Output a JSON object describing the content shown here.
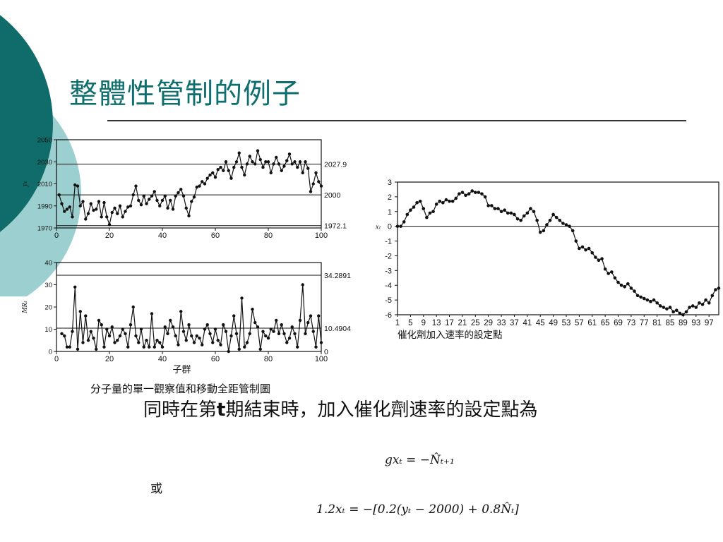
{
  "slide": {
    "title": "整體性管制的例子",
    "theme": {
      "accent_dark": "#0f6e6e",
      "accent_light": "#9ccfcf",
      "text": "#111111"
    }
  },
  "body": {
    "text_before": "同時在第",
    "t": "t",
    "text_after": "期結束時，加入催化劑速率的設定點為",
    "or": "或",
    "eq1": "gxₜ = −N̂ₜ₊₁",
    "eq2": "1.2xₜ = −[0.2(yₜ − 2000) + 0.8N̂ₜ]"
  },
  "chart_data": [
    {
      "type": "line",
      "ylabel": "yₜ",
      "x": [
        1,
        2,
        3,
        4,
        5,
        6,
        7,
        8,
        9,
        10,
        11,
        12,
        13,
        14,
        15,
        16,
        17,
        18,
        19,
        20,
        21,
        22,
        23,
        24,
        25,
        26,
        27,
        28,
        29,
        30,
        31,
        32,
        33,
        34,
        35,
        36,
        37,
        38,
        39,
        40,
        41,
        42,
        43,
        44,
        45,
        46,
        47,
        48,
        49,
        50,
        51,
        52,
        53,
        54,
        55,
        56,
        57,
        58,
        59,
        60,
        61,
        62,
        63,
        64,
        65,
        66,
        67,
        68,
        69,
        70,
        71,
        72,
        73,
        74,
        75,
        76,
        77,
        78,
        79,
        80,
        81,
        82,
        83,
        84,
        85,
        86,
        87,
        88,
        89,
        90,
        91,
        92,
        93,
        94,
        95,
        96,
        97,
        98,
        99,
        100
      ],
      "values": [
        2000,
        1992,
        1985,
        1987,
        1989,
        1980,
        2009,
        2008,
        1990,
        1994,
        1978,
        1983,
        1992,
        1986,
        1987,
        1994,
        1980,
        1993,
        1980,
        1973,
        1984,
        1988,
        1983,
        1990,
        1980,
        1985,
        1989,
        1990,
        2000,
        2008,
        1995,
        1991,
        1999,
        1992,
        1996,
        1999,
        2003,
        1995,
        1990,
        1995,
        1999,
        1988,
        1995,
        1987,
        1999,
        2002,
        2005,
        1999,
        1988,
        1981,
        1994,
        1998,
        2007,
        2008,
        2012,
        2010,
        2015,
        2018,
        2020,
        2016,
        2023,
        2025,
        2022,
        2030,
        2022,
        2015,
        2025,
        2030,
        2038,
        2025,
        2018,
        2028,
        2035,
        2030,
        2028,
        2040,
        2032,
        2025,
        2030,
        2030,
        2020,
        2028,
        2034,
        2028,
        2022,
        2026,
        2031,
        2037,
        2028,
        2030,
        2025,
        2030,
        2020,
        2030,
        2024,
        2003,
        2010,
        2020,
        2012,
        2008
      ],
      "xlim": [
        0,
        100
      ],
      "ylim": [
        1970,
        2050
      ],
      "yticks": [
        "1970",
        "1990",
        "2010",
        "2030",
        "2050"
      ],
      "xticks": [
        "0",
        "20",
        "40",
        "60",
        "80",
        "100"
      ],
      "lines": [
        {
          "label": "2027.9",
          "value": 2027.9
        },
        {
          "label": "2000",
          "value": 2000
        },
        {
          "label": "1972.1",
          "value": 1972.1
        }
      ]
    },
    {
      "type": "line",
      "ylabel": "MRₜ",
      "xlabel": "子群",
      "caption": "分子量的單一觀察值和移動全距管制圖",
      "x": [
        2,
        3,
        4,
        5,
        6,
        7,
        8,
        9,
        10,
        11,
        12,
        13,
        14,
        15,
        16,
        17,
        18,
        19,
        20,
        21,
        22,
        23,
        24,
        25,
        26,
        27,
        28,
        29,
        30,
        31,
        32,
        33,
        34,
        35,
        36,
        37,
        38,
        39,
        40,
        41,
        42,
        43,
        44,
        45,
        46,
        47,
        48,
        49,
        50,
        51,
        52,
        53,
        54,
        55,
        56,
        57,
        58,
        59,
        60,
        61,
        62,
        63,
        64,
        65,
        66,
        67,
        68,
        69,
        70,
        71,
        72,
        73,
        74,
        75,
        76,
        77,
        78,
        79,
        80,
        81,
        82,
        83,
        84,
        85,
        86,
        87,
        88,
        89,
        90,
        91,
        92,
        93,
        94,
        95,
        96,
        97,
        98,
        99,
        100
      ],
      "values": [
        8,
        7,
        2,
        2,
        9,
        29,
        1,
        18,
        4,
        16,
        5,
        9,
        6,
        1,
        14,
        12,
        2,
        10,
        7,
        11,
        4,
        5,
        7,
        10,
        8,
        2,
        12,
        20,
        7,
        4,
        10,
        2,
        5,
        2,
        17,
        2,
        5,
        4,
        2,
        11,
        8,
        14,
        11,
        7,
        3,
        18,
        9,
        5,
        12,
        7,
        4,
        7,
        6,
        3,
        10,
        12,
        8,
        4,
        10,
        5,
        3,
        12,
        9,
        0,
        7,
        16,
        8,
        1,
        24,
        2,
        4,
        8,
        19,
        13,
        11,
        1,
        9,
        7,
        6,
        10,
        9,
        14,
        8,
        12,
        8,
        4,
        6,
        11,
        8,
        2,
        14,
        30,
        8,
        13,
        16,
        9,
        2,
        16,
        4
      ],
      "xlim": [
        0,
        100
      ],
      "ylim": [
        0,
        40
      ],
      "yticks": [
        "0",
        "10",
        "20",
        "30",
        "40"
      ],
      "xticks": [
        "0",
        "20",
        "40",
        "60",
        "80",
        "100"
      ],
      "lines": [
        {
          "label": "34.2891",
          "value": 34.2891
        },
        {
          "label": "10.4904",
          "value": 10.4904
        },
        {
          "label": "0",
          "value": 0
        }
      ]
    },
    {
      "type": "line",
      "ylabel": "xₜ",
      "xlabel": "催化劑加入速率的設定點",
      "x_start": 1,
      "values": [
        0,
        0,
        0.3,
        0.8,
        1.1,
        1.3,
        1.6,
        1.7,
        1.2,
        0.6,
        0.9,
        1.0,
        1.5,
        1.7,
        1.6,
        1.8,
        1.7,
        1.7,
        1.9,
        2.2,
        2.3,
        2.1,
        2.2,
        2.4,
        2.3,
        2.3,
        2.2,
        2.0,
        1.4,
        1.4,
        1.2,
        1.2,
        1.0,
        1.1,
        0.9,
        0.9,
        0.8,
        0.5,
        0.4,
        0.7,
        0.9,
        1.2,
        1.0,
        0.4,
        -0.4,
        -0.3,
        0.1,
        0.4,
        0.8,
        0.6,
        0.4,
        0.2,
        0.1,
        0.0,
        -0.3,
        -1.0,
        -1.5,
        -1.4,
        -1.6,
        -1.5,
        -1.8,
        -2.1,
        -2.3,
        -2.2,
        -2.9,
        -3.2,
        -3.1,
        -3.5,
        -3.8,
        -4.0,
        -4.1,
        -3.9,
        -4.2,
        -4.4,
        -4.7,
        -4.8,
        -4.9,
        -5.0,
        -5.1,
        -5.0,
        -5.2,
        -5.4,
        -5.5,
        -5.6,
        -5.5,
        -5.8,
        -5.7,
        -5.9,
        -6.0,
        -5.8,
        -5.5,
        -5.4,
        -5.5,
        -5.2,
        -5.3,
        -5.0,
        -5.2,
        -4.7,
        -4.3,
        -4.2
      ],
      "ylim": [
        -6,
        3
      ],
      "yticks": [
        "3",
        "2",
        "1",
        "0",
        "-1",
        "-2",
        "-3",
        "-4",
        "-5",
        "-6"
      ],
      "xticks": [
        "1",
        "5",
        "9",
        "13",
        "17",
        "21",
        "25",
        "29",
        "33",
        "37",
        "41",
        "45",
        "49",
        "53",
        "57",
        "61",
        "65",
        "69",
        "73",
        "77",
        "81",
        "85",
        "89",
        "93",
        "97"
      ]
    }
  ]
}
